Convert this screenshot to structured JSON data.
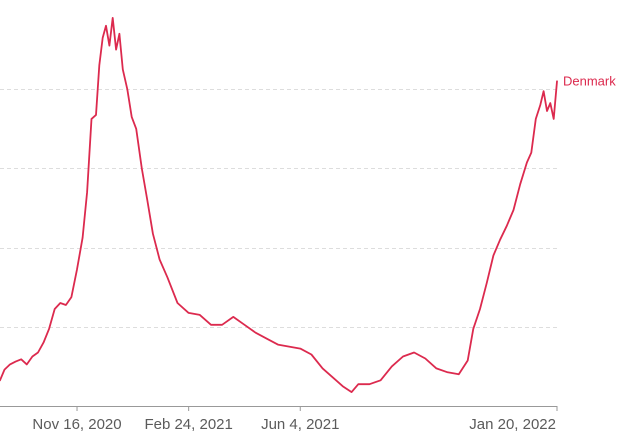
{
  "chart_data": {
    "type": "line",
    "title": "",
    "xlabel": "",
    "ylabel": "",
    "x_axis": {
      "type": "date",
      "range": [
        "2020-09-08",
        "2022-01-20"
      ],
      "ticks": [
        {
          "date": "2020-11-16",
          "label": "Nov 16, 2020"
        },
        {
          "date": "2021-02-24",
          "label": "Feb 24, 2021"
        },
        {
          "date": "2021-06-04",
          "label": "Jun 4, 2021"
        },
        {
          "date": "2022-01-20",
          "label": "Jan 20, 2022"
        }
      ]
    },
    "y_axis": {
      "range": [
        0,
        100
      ],
      "gridlines": [
        20,
        40,
        60,
        80
      ],
      "tick_labels_visible": false
    },
    "grid": true,
    "legend": "inline-end-label",
    "series": [
      {
        "name": "Denmark",
        "color": "#dc2a4e",
        "points": [
          [
            "2020-09-08",
            6.5
          ],
          [
            "2020-09-12",
            9.2
          ],
          [
            "2020-09-17",
            10.5
          ],
          [
            "2020-09-22",
            11.2
          ],
          [
            "2020-09-27",
            11.8
          ],
          [
            "2020-10-02",
            10.5
          ],
          [
            "2020-10-07",
            12.5
          ],
          [
            "2020-10-12",
            13.5
          ],
          [
            "2020-10-17",
            16.0
          ],
          [
            "2020-10-22",
            19.5
          ],
          [
            "2020-10-27",
            24.5
          ],
          [
            "2020-11-01",
            26.0
          ],
          [
            "2020-11-06",
            25.5
          ],
          [
            "2020-11-11",
            27.5
          ],
          [
            "2020-11-16",
            34.5
          ],
          [
            "2020-11-21",
            42.5
          ],
          [
            "2020-11-25",
            54.0
          ],
          [
            "2020-11-29",
            72.5
          ],
          [
            "2020-12-03",
            73.5
          ],
          [
            "2020-12-06",
            86.0
          ],
          [
            "2020-12-09",
            93.0
          ],
          [
            "2020-12-12",
            96.0
          ],
          [
            "2020-12-15",
            91.0
          ],
          [
            "2020-12-18",
            98.0
          ],
          [
            "2020-12-21",
            90.0
          ],
          [
            "2020-12-24",
            94.0
          ],
          [
            "2020-12-27",
            85.0
          ],
          [
            "2020-12-31",
            80.0
          ],
          [
            "2021-01-04",
            73.0
          ],
          [
            "2021-01-08",
            70.0
          ],
          [
            "2021-01-13",
            60.0
          ],
          [
            "2021-01-18",
            52.0
          ],
          [
            "2021-01-23",
            43.5
          ],
          [
            "2021-01-29",
            37.0
          ],
          [
            "2021-02-05",
            32.5
          ],
          [
            "2021-02-14",
            26.0
          ],
          [
            "2021-02-24",
            23.5
          ],
          [
            "2021-03-06",
            23.0
          ],
          [
            "2021-03-16",
            20.5
          ],
          [
            "2021-03-26",
            20.5
          ],
          [
            "2021-04-05",
            22.5
          ],
          [
            "2021-04-15",
            20.5
          ],
          [
            "2021-04-25",
            18.5
          ],
          [
            "2021-05-05",
            17.0
          ],
          [
            "2021-05-15",
            15.5
          ],
          [
            "2021-05-25",
            15.0
          ],
          [
            "2021-06-04",
            14.5
          ],
          [
            "2021-06-14",
            13.0
          ],
          [
            "2021-06-24",
            9.5
          ],
          [
            "2021-07-04",
            7.0
          ],
          [
            "2021-07-12",
            5.0
          ],
          [
            "2021-07-20",
            3.5
          ],
          [
            "2021-07-26",
            5.5
          ],
          [
            "2021-08-05",
            5.5
          ],
          [
            "2021-08-15",
            6.5
          ],
          [
            "2021-08-25",
            10.0
          ],
          [
            "2021-09-04",
            12.5
          ],
          [
            "2021-09-14",
            13.5
          ],
          [
            "2021-09-24",
            12.0
          ],
          [
            "2021-10-04",
            9.5
          ],
          [
            "2021-10-14",
            8.5
          ],
          [
            "2021-10-24",
            8.0
          ],
          [
            "2021-11-01",
            11.5
          ],
          [
            "2021-11-06",
            19.5
          ],
          [
            "2021-11-12",
            24.5
          ],
          [
            "2021-11-18",
            31.0
          ],
          [
            "2021-11-24",
            38.0
          ],
          [
            "2021-11-30",
            42.0
          ],
          [
            "2021-12-06",
            45.5
          ],
          [
            "2021-12-12",
            49.5
          ],
          [
            "2021-12-18",
            56.0
          ],
          [
            "2021-12-24",
            61.5
          ],
          [
            "2021-12-28",
            64.0
          ],
          [
            "2022-01-01",
            72.5
          ],
          [
            "2022-01-05",
            76.0
          ],
          [
            "2022-01-08",
            79.5
          ],
          [
            "2022-01-11",
            74.5
          ],
          [
            "2022-01-14",
            76.5
          ],
          [
            "2022-01-17",
            72.5
          ],
          [
            "2022-01-20",
            82.0
          ]
        ]
      }
    ]
  }
}
